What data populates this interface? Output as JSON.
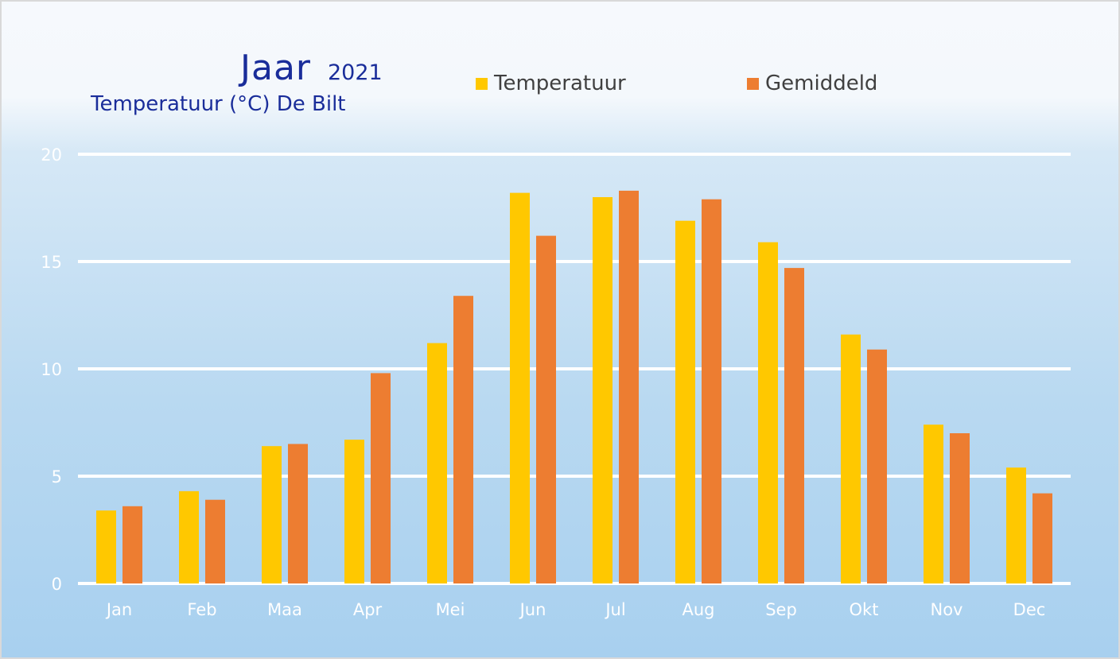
{
  "header": {
    "title": "Jaar",
    "year": "2021",
    "subtitle": "Temperatuur (°C) De Bilt"
  },
  "legend": [
    {
      "label": "Temperatuur",
      "color": "#ffc800"
    },
    {
      "label": "Gemiddeld",
      "color": "#ed7d31"
    }
  ],
  "chart_data": {
    "type": "bar",
    "categories": [
      "Jan",
      "Feb",
      "Maa",
      "Apr",
      "Mei",
      "Jun",
      "Jul",
      "Aug",
      "Sep",
      "Okt",
      "Nov",
      "Dec"
    ],
    "series": [
      {
        "name": "Temperatuur",
        "color": "#ffc800",
        "values": [
          3.4,
          4.3,
          6.4,
          6.7,
          11.2,
          18.2,
          18.0,
          16.9,
          15.9,
          11.6,
          7.4,
          5.4
        ]
      },
      {
        "name": "Gemiddeld",
        "color": "#ed7d31",
        "values": [
          3.6,
          3.9,
          6.5,
          9.8,
          13.4,
          16.2,
          18.3,
          17.9,
          14.7,
          10.9,
          7.0,
          4.2
        ]
      }
    ],
    "ylim": [
      0,
      20
    ],
    "yticks": [
      0,
      5,
      10,
      15,
      20
    ],
    "grid": true,
    "legend_position": "top"
  }
}
